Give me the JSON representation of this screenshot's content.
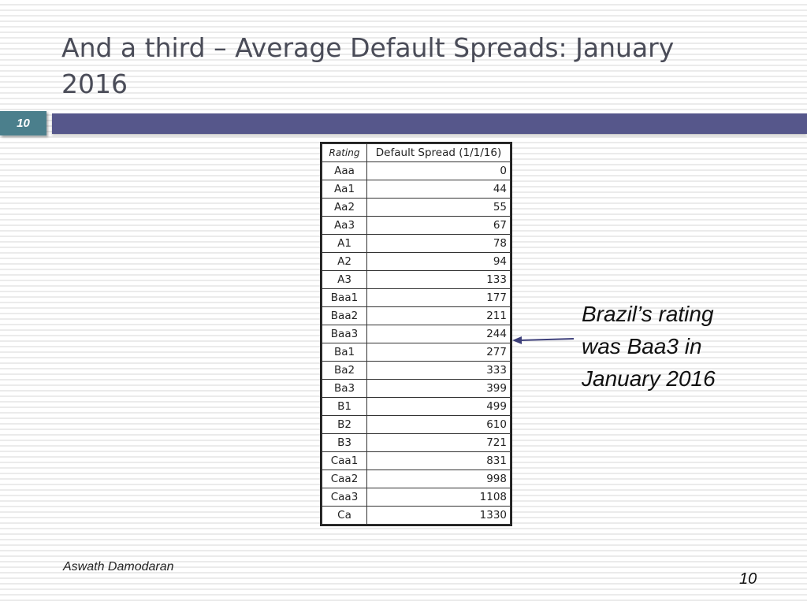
{
  "slide": {
    "title": "And a third – Average Default Spreads: January 2016",
    "slide_number_badge": "10",
    "page_number": "10",
    "author": "Aswath Damodaran",
    "colors": {
      "header_bar": "#56578b",
      "badge": "#4b7f8c",
      "title": "#4a4c58"
    }
  },
  "table": {
    "headers": [
      "Rating",
      "Default Spread (1/1/16)"
    ],
    "rows": [
      [
        "Aaa",
        "0"
      ],
      [
        "Aa1",
        "44"
      ],
      [
        "Aa2",
        "55"
      ],
      [
        "Aa3",
        "67"
      ],
      [
        "A1",
        "78"
      ],
      [
        "A2",
        "94"
      ],
      [
        "A3",
        "133"
      ],
      [
        "Baa1",
        "177"
      ],
      [
        "Baa2",
        "211"
      ],
      [
        "Baa3",
        "244"
      ],
      [
        "Ba1",
        "277"
      ],
      [
        "Ba2",
        "333"
      ],
      [
        "Ba3",
        "399"
      ],
      [
        "B1",
        "499"
      ],
      [
        "B2",
        "610"
      ],
      [
        "B3",
        "721"
      ],
      [
        "Caa1",
        "831"
      ],
      [
        "Caa2",
        "998"
      ],
      [
        "Caa3",
        "1108"
      ],
      [
        "Ca",
        "1330"
      ]
    ]
  },
  "annotation": {
    "lines": [
      "Brazil’s rating",
      "was Baa3 in",
      "January 2016"
    ],
    "points_to": "Baa3"
  }
}
